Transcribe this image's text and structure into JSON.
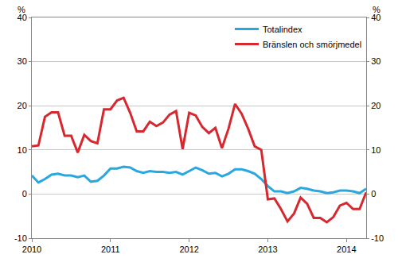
{
  "chart_data": {
    "type": "line",
    "ylabel": "%",
    "categories": [
      "2010",
      null,
      null,
      null,
      null,
      null,
      null,
      null,
      null,
      null,
      null,
      null,
      "2011",
      null,
      null,
      null,
      null,
      null,
      null,
      null,
      null,
      null,
      null,
      null,
      "2012",
      null,
      null,
      null,
      null,
      null,
      null,
      null,
      null,
      null,
      null,
      null,
      "2013",
      null,
      null,
      null,
      null,
      null,
      null,
      null,
      null,
      null,
      null,
      null,
      "2014",
      null,
      null,
      null
    ],
    "series": [
      {
        "name": "Totalindex",
        "color": "#2aa7df",
        "values": [
          4.2,
          2.6,
          3.4,
          4.4,
          4.6,
          4.2,
          4.2,
          3.8,
          4.2,
          2.8,
          3.0,
          4.2,
          5.8,
          5.8,
          6.2,
          6.0,
          5.2,
          4.8,
          5.2,
          5.0,
          5.0,
          4.8,
          5.0,
          4.4,
          5.2,
          6.0,
          5.4,
          4.6,
          4.8,
          4.0,
          4.6,
          5.6,
          5.6,
          5.2,
          4.6,
          3.4,
          1.8,
          0.6,
          0.6,
          0.2,
          0.6,
          1.4,
          1.2,
          0.8,
          0.6,
          0.2,
          0.4,
          0.8,
          0.8,
          0.6,
          0.2,
          1.2
        ]
      },
      {
        "name": "Bränslen och smörjmedel",
        "color": "#d7282f",
        "values": [
          10.8,
          11.0,
          17.5,
          18.5,
          18.5,
          13.2,
          13.2,
          9.4,
          13.4,
          12.0,
          11.5,
          19.2,
          19.2,
          21.2,
          21.8,
          18.4,
          14.2,
          14.2,
          16.4,
          15.4,
          16.2,
          18.0,
          18.8,
          10.2,
          18.4,
          17.8,
          15.2,
          13.8,
          15.0,
          10.4,
          14.8,
          20.4,
          18.2,
          14.8,
          10.8,
          10.0,
          -1.2,
          -1.0,
          -3.4,
          -6.2,
          -4.4,
          -0.8,
          -2.2,
          -5.4,
          -5.4,
          -6.4,
          -5.2,
          -2.6,
          -2.0,
          -3.4,
          -3.4,
          0.4
        ]
      }
    ],
    "ylim": [
      -10,
      40
    ],
    "yticks": [
      -10,
      0,
      10,
      20,
      30,
      40
    ],
    "grid": true,
    "legend": "top-right"
  }
}
